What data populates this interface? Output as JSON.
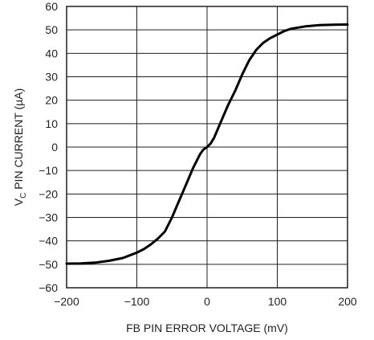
{
  "chart_data": {
    "type": "line",
    "xlabel": "FB PIN ERROR VOLTAGE (mV)",
    "ylabel_main": "V",
    "ylabel_sub": "C",
    "ylabel_rest": " PIN CURRENT (µA)",
    "xlim": [
      -200,
      200
    ],
    "ylim": [
      -60,
      60
    ],
    "x_ticks": [
      -200,
      -100,
      0,
      100,
      200
    ],
    "x_tick_labels": [
      "−200",
      "−100",
      "0",
      "100",
      "200"
    ],
    "y_ticks": [
      60,
      50,
      40,
      30,
      20,
      10,
      0,
      -10,
      -20,
      -30,
      -40,
      -50,
      -60
    ],
    "y_tick_labels": [
      "60",
      "50",
      "40",
      "30",
      "20",
      "10",
      "0",
      "−10",
      "−20",
      "−30",
      "−40",
      "−50",
      "−60"
    ],
    "x_grid": [
      -100,
      0,
      100
    ],
    "y_grid": [
      50,
      40,
      30,
      20,
      10,
      0,
      -10,
      -20,
      -30,
      -40,
      -50
    ],
    "series": [
      {
        "x": [
          -200,
          -180,
          -160,
          -140,
          -120,
          -100,
          -90,
          -80,
          -70,
          -60,
          -50,
          -40,
          -30,
          -20,
          -10,
          -5,
          0,
          5,
          10,
          20,
          30,
          40,
          50,
          60,
          70,
          80,
          90,
          100,
          110,
          120,
          140,
          160,
          180,
          200
        ],
        "y": [
          -49.7,
          -49.6,
          -49.3,
          -48.5,
          -47.3,
          -45,
          -43.5,
          -41.5,
          -39,
          -36,
          -30,
          -23,
          -16,
          -9,
          -3,
          -1,
          0,
          1.5,
          4,
          11,
          18,
          24,
          31,
          37,
          41.5,
          44.5,
          46.5,
          48,
          49.5,
          50.5,
          51.5,
          52,
          52.2,
          52.3
        ]
      }
    ]
  }
}
